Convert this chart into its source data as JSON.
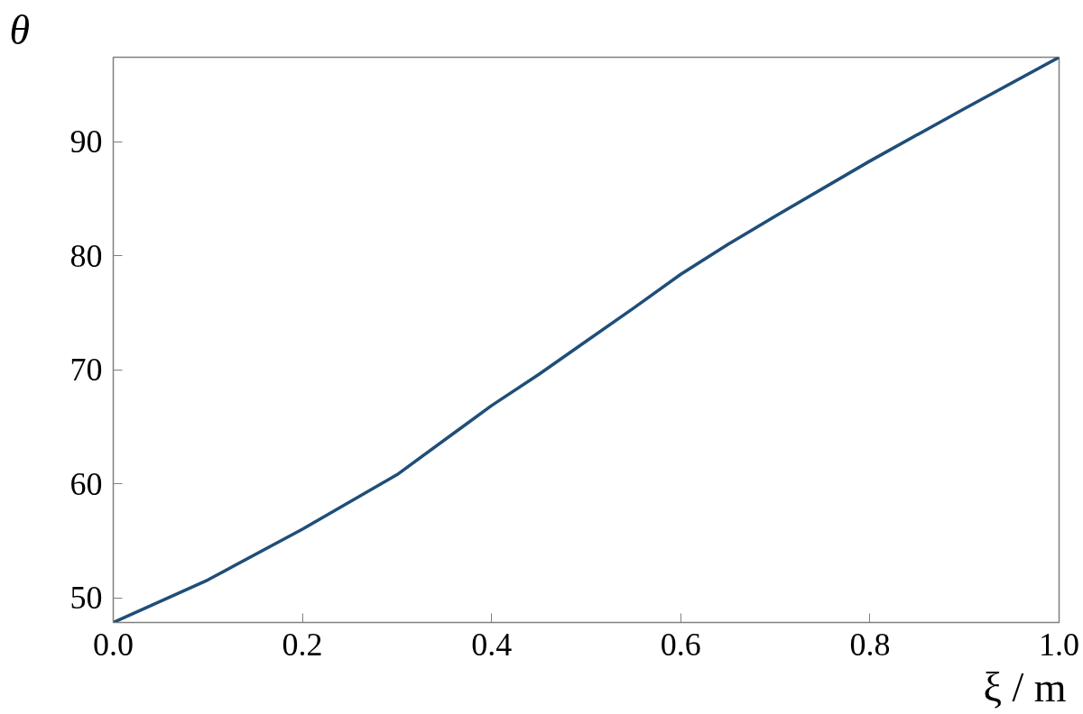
{
  "chart_data": {
    "type": "line",
    "xlabel": "ξ / m",
    "ylabel": "θ",
    "x": [
      0.0,
      0.1,
      0.2,
      0.3,
      0.4,
      0.45,
      0.5,
      0.55,
      0.6,
      0.65,
      0.7,
      0.8,
      0.9,
      1.0
    ],
    "series": [
      {
        "color": "#1f4e79",
        "values": [
          47.84,
          51.57,
          56.02,
          60.8,
          66.86,
          69.6,
          72.5,
          75.4,
          78.37,
          81.0,
          83.46,
          88.3,
          92.9,
          97.4
        ]
      }
    ],
    "xlim": [
      0.0,
      1.0
    ],
    "ylim": [
      47.84,
      97.4
    ],
    "xticks": [
      {
        "value": 0.0,
        "label": "0.0"
      },
      0.2,
      0.4,
      0.6,
      0.8,
      {
        "value": 1.0,
        "label": "1.0"
      }
    ],
    "yticks": [
      50,
      60,
      70,
      80,
      90
    ],
    "grid": false,
    "marker": "none",
    "line_style": "solid"
  }
}
